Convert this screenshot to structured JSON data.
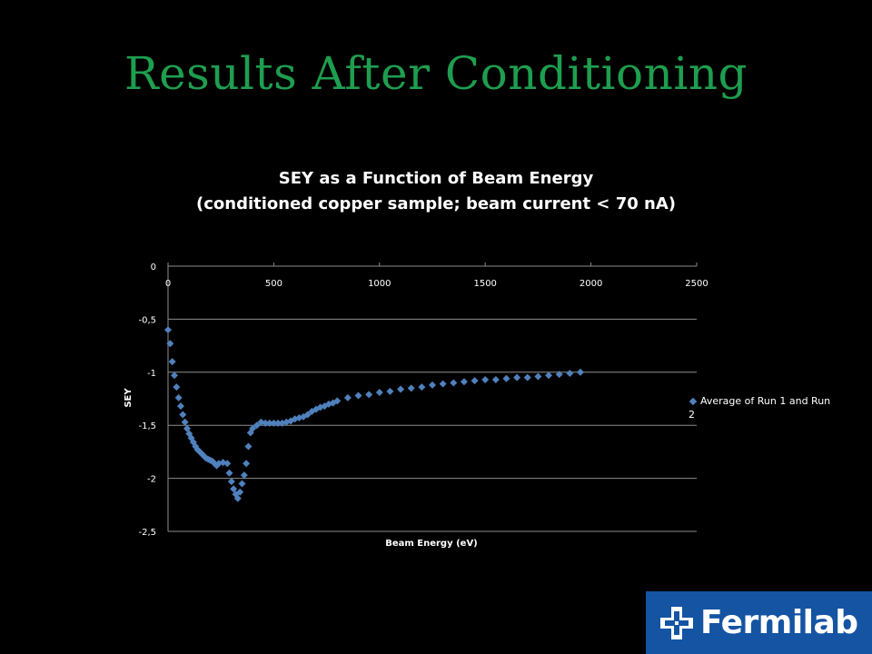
{
  "slide": {
    "title": "Results After Conditioning"
  },
  "colors": {
    "title": "#1e9e4f",
    "series": "#4f81bd",
    "logo_bg": "#1454a3"
  },
  "logo": {
    "text": "Fermilab",
    "icon": "fermilab-logo-icon"
  },
  "chart_data": {
    "type": "scatter",
    "title": "SEY as a Function of Beam Energy",
    "subtitle": "(conditioned copper sample; beam current < 70 nA)",
    "xlabel": "Beam Energy (eV)",
    "ylabel": "SEY",
    "xlim": [
      0,
      2500
    ],
    "ylim": [
      -2.5,
      0
    ],
    "xticks": [
      "0",
      "500",
      "1000",
      "1500",
      "2000",
      "2500"
    ],
    "yticks": [
      "0",
      "-0,5",
      "-1",
      "-1,5",
      "-2",
      "-2,5"
    ],
    "grid": true,
    "legend_position": "right",
    "series": [
      {
        "name": "Average of Run 1 and Run 2",
        "x": [
          0,
          10,
          20,
          30,
          40,
          50,
          60,
          70,
          80,
          90,
          100,
          110,
          120,
          130,
          140,
          150,
          160,
          170,
          180,
          190,
          200,
          210,
          220,
          230,
          240,
          260,
          280,
          290,
          300,
          310,
          320,
          330,
          340,
          350,
          360,
          370,
          380,
          390,
          400,
          420,
          440,
          460,
          480,
          500,
          520,
          540,
          560,
          580,
          600,
          620,
          640,
          660,
          680,
          700,
          720,
          740,
          760,
          780,
          800,
          850,
          900,
          950,
          1000,
          1050,
          1100,
          1150,
          1200,
          1250,
          1300,
          1350,
          1400,
          1450,
          1500,
          1550,
          1600,
          1650,
          1700,
          1750,
          1800,
          1850,
          1900,
          1950
        ],
        "y": [
          -0.6,
          -0.73,
          -0.9,
          -1.03,
          -1.14,
          -1.24,
          -1.32,
          -1.4,
          -1.47,
          -1.53,
          -1.58,
          -1.62,
          -1.66,
          -1.7,
          -1.73,
          -1.75,
          -1.77,
          -1.79,
          -1.81,
          -1.82,
          -1.83,
          -1.84,
          -1.86,
          -1.88,
          -1.86,
          -1.85,
          -1.86,
          -1.95,
          -2.03,
          -2.1,
          -2.15,
          -2.19,
          -2.13,
          -2.05,
          -1.97,
          -1.86,
          -1.7,
          -1.57,
          -1.53,
          -1.5,
          -1.47,
          -1.48,
          -1.48,
          -1.48,
          -1.48,
          -1.48,
          -1.47,
          -1.46,
          -1.44,
          -1.43,
          -1.42,
          -1.4,
          -1.37,
          -1.35,
          -1.33,
          -1.32,
          -1.3,
          -1.29,
          -1.27,
          -1.24,
          -1.22,
          -1.21,
          -1.19,
          -1.18,
          -1.16,
          -1.15,
          -1.14,
          -1.12,
          -1.11,
          -1.1,
          -1.09,
          -1.08,
          -1.07,
          -1.07,
          -1.06,
          -1.05,
          -1.05,
          -1.04,
          -1.03,
          -1.02,
          -1.01,
          -1.0
        ]
      }
    ]
  }
}
